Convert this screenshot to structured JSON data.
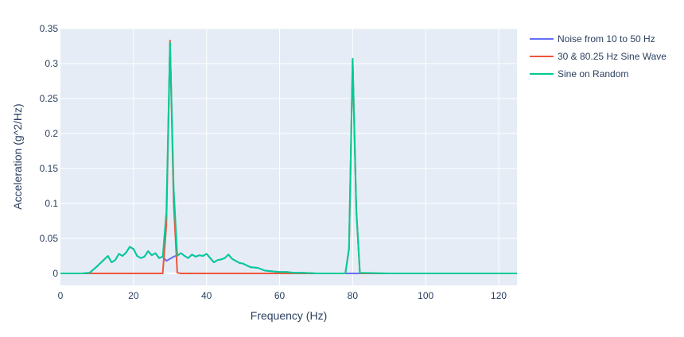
{
  "chart_data": {
    "type": "line",
    "xlabel": "Frequency (Hz)",
    "ylabel": "Acceleration (g^2/Hz)",
    "xlim": [
      0,
      125
    ],
    "ylim": [
      -0.017,
      0.35
    ],
    "x_ticks": [
      0,
      20,
      40,
      60,
      80,
      100,
      120
    ],
    "y_ticks": [
      0,
      0.05,
      0.1,
      0.15,
      0.2,
      0.25,
      0.3,
      0.35
    ],
    "y_tick_labels": [
      "0",
      "0.05",
      "0.1",
      "0.15",
      "0.2",
      "0.25",
      "0.3",
      "0.35"
    ],
    "grid": true,
    "legend_position": "top-right outside",
    "plot_background": "#e5ecf6",
    "series": [
      {
        "name": "Noise from 10 to 50 Hz",
        "color": "#636efa",
        "x": [
          0,
          2,
          4,
          6,
          8,
          10,
          12,
          13,
          14,
          15,
          16,
          17,
          18,
          19,
          20,
          21,
          22,
          23,
          24,
          25,
          26,
          27,
          28,
          29,
          30,
          31,
          32,
          33,
          34,
          35,
          36,
          37,
          38,
          39,
          40,
          41,
          42,
          43,
          44,
          45,
          46,
          47,
          48,
          49,
          50,
          52,
          54,
          56,
          58,
          60,
          62,
          64,
          66,
          70,
          75,
          80,
          85,
          90,
          100,
          110,
          120,
          125
        ],
        "y": [
          0,
          0,
          0,
          0,
          0.001,
          0.01,
          0.02,
          0.025,
          0.016,
          0.019,
          0.028,
          0.025,
          0.03,
          0.038,
          0.035,
          0.025,
          0.022,
          0.024,
          0.032,
          0.026,
          0.029,
          0.022,
          0.024,
          0.018,
          0.021,
          0.024,
          0.026,
          0.029,
          0.025,
          0.022,
          0.027,
          0.024,
          0.026,
          0.025,
          0.028,
          0.022,
          0.016,
          0.019,
          0.02,
          0.022,
          0.027,
          0.021,
          0.018,
          0.015,
          0.014,
          0.009,
          0.008,
          0.004,
          0.003,
          0.002,
          0.002,
          0.001,
          0.001,
          0,
          0,
          0,
          0,
          0,
          0,
          0,
          0,
          0
        ]
      },
      {
        "name": "30 & 80.25 Hz Sine Wave",
        "color": "#ef553b",
        "x": [
          0,
          10,
          20,
          28,
          29,
          30,
          31,
          32,
          33,
          40,
          60,
          78,
          79,
          80,
          81,
          82,
          90,
          100,
          110,
          125
        ],
        "y": [
          0,
          0,
          0,
          0,
          0.07,
          0.333,
          0.1,
          0.001,
          0,
          0,
          0,
          0,
          0.035,
          0.305,
          0.09,
          0,
          0,
          0,
          0,
          0
        ]
      },
      {
        "name": "Sine on Random",
        "color": "#00cc96",
        "x": [
          0,
          2,
          4,
          6,
          8,
          10,
          12,
          13,
          14,
          15,
          16,
          17,
          18,
          19,
          20,
          21,
          22,
          23,
          24,
          25,
          26,
          27,
          28,
          29,
          30,
          31,
          32,
          33,
          34,
          35,
          36,
          37,
          38,
          39,
          40,
          41,
          42,
          43,
          44,
          45,
          46,
          47,
          48,
          49,
          50,
          52,
          54,
          56,
          58,
          60,
          62,
          64,
          66,
          70,
          75,
          78,
          79,
          80,
          81,
          82,
          90,
          100,
          110,
          125
        ],
        "y": [
          0,
          0,
          0,
          0,
          0.001,
          0.01,
          0.02,
          0.025,
          0.016,
          0.019,
          0.028,
          0.025,
          0.03,
          0.038,
          0.035,
          0.025,
          0.022,
          0.024,
          0.032,
          0.026,
          0.029,
          0.022,
          0.024,
          0.088,
          0.33,
          0.12,
          0.025,
          0.029,
          0.025,
          0.022,
          0.027,
          0.024,
          0.026,
          0.025,
          0.028,
          0.022,
          0.016,
          0.019,
          0.02,
          0.022,
          0.027,
          0.021,
          0.018,
          0.015,
          0.014,
          0.009,
          0.008,
          0.004,
          0.003,
          0.002,
          0.002,
          0.001,
          0.001,
          0,
          0,
          0,
          0.035,
          0.307,
          0.09,
          0.001,
          0,
          0,
          0,
          0
        ]
      }
    ]
  }
}
